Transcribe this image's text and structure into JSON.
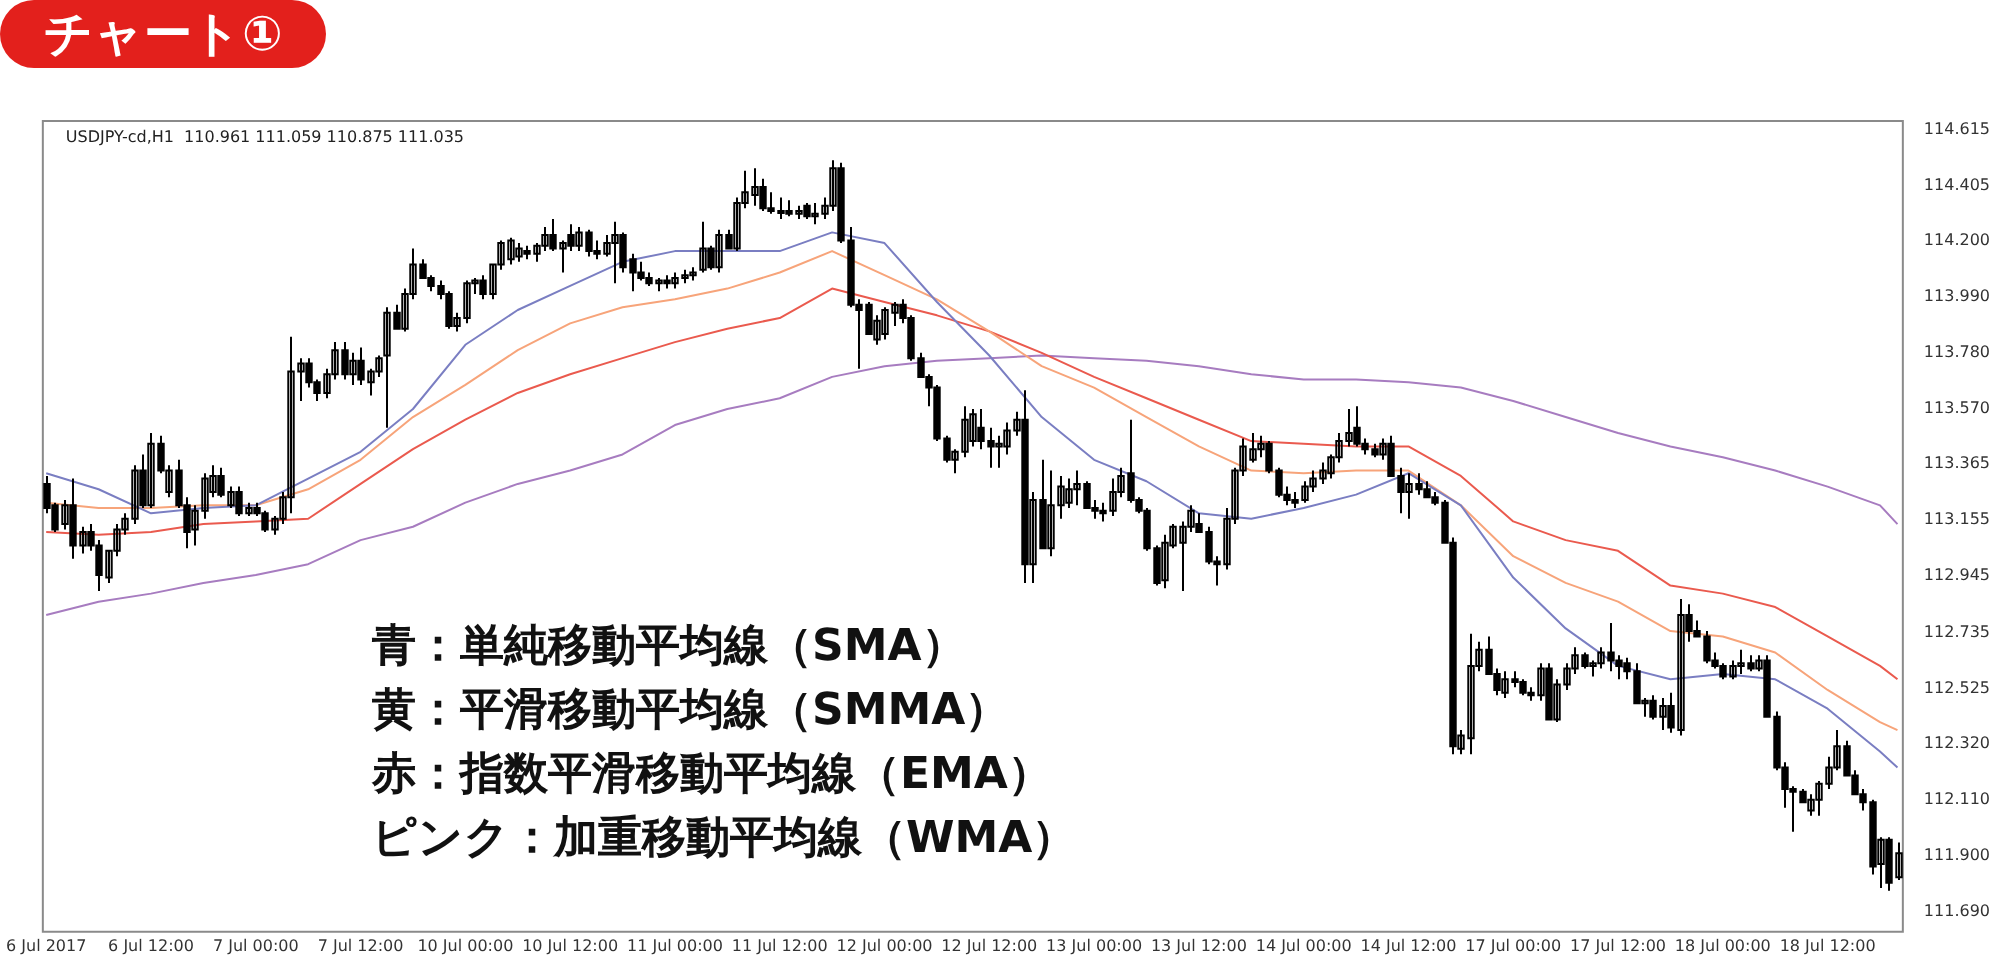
{
  "chart_data": {
    "type": "candlestick",
    "title": "チャート①",
    "annotations": [
      "USDJPY-cd,H1  110.961 111.059 110.875 111.035",
      "青：単純移動平均線（SMA）",
      "黄：平滑移動平均線（SMMA）",
      "赤：指数平滑移動平均線（EMA）",
      "ピンク：加重移動平均線（WMA）"
    ],
    "categories": [
      "6 Jul 2017",
      null,
      null,
      null,
      null,
      null,
      null,
      null,
      null,
      null,
      null,
      null,
      "6 Jul 12:00",
      null,
      null,
      null,
      null,
      null,
      null,
      null,
      null,
      null,
      null,
      null,
      "7 Jul 00:00",
      null,
      null,
      null,
      null,
      null,
      null,
      null,
      null,
      null,
      null,
      null,
      "7 Jul 12:00",
      null,
      null,
      null,
      null,
      null,
      null,
      null,
      null,
      null,
      null,
      null,
      "10 Jul 00:00",
      null,
      null,
      null,
      null,
      null,
      null,
      null,
      null,
      null,
      null,
      null,
      "10 Jul 12:00",
      null,
      null,
      null,
      null,
      null,
      null,
      null,
      null,
      null,
      null,
      null,
      "11 Jul 00:00",
      null,
      null,
      null,
      null,
      null,
      null,
      null,
      null,
      null,
      null,
      null,
      "11 Jul 12:00",
      null,
      null,
      null,
      null,
      null,
      null,
      null,
      null,
      null,
      null,
      null,
      "12 Jul 00:00",
      null,
      null,
      null,
      null,
      null,
      null,
      null,
      null,
      null,
      null,
      null,
      "12 Jul 12:00",
      null,
      null,
      null,
      null,
      null,
      null,
      null,
      null,
      null,
      null,
      null,
      "13 Jul 00:00",
      null,
      null,
      null,
      null,
      null,
      null,
      null,
      null,
      null,
      null,
      null,
      "13 Jul 12:00",
      null,
      null,
      null,
      null,
      null,
      null,
      null,
      null,
      null,
      null,
      null,
      "14 Jul 00:00",
      null,
      null,
      null,
      null,
      null,
      null,
      null,
      null,
      null,
      null,
      null,
      "14 Jul 12:00",
      null,
      null,
      null,
      null,
      null,
      null,
      null,
      null,
      null,
      null,
      null,
      "17 Jul 00:00",
      null,
      null,
      null,
      null,
      null,
      null,
      null,
      null,
      null,
      null,
      null,
      "17 Jul 12:00",
      null,
      null,
      null,
      null,
      null,
      null,
      null,
      null,
      null,
      null,
      null,
      "18 Jul 00:00",
      null,
      null,
      null,
      null,
      null,
      null,
      null,
      null,
      null,
      null,
      null,
      "18 Jul 12:00",
      null,
      null,
      null,
      null,
      null,
      null,
      null,
      null
    ],
    "color": "#000000",
    "ohlc": [
      [
        113.29,
        113.32,
        113.18,
        113.2
      ],
      [
        113.21,
        113.22,
        113.11,
        113.12
      ],
      [
        113.14,
        113.23,
        113.12,
        113.21
      ],
      [
        113.21,
        113.31,
        113.01,
        113.06
      ],
      [
        113.06,
        113.13,
        113.03,
        113.11
      ],
      [
        113.11,
        113.14,
        113.04,
        113.06
      ],
      [
        113.06,
        113.08,
        112.89,
        112.95
      ],
      [
        112.94,
        113.04,
        112.92,
        113.04
      ],
      [
        113.04,
        113.14,
        113.02,
        113.12
      ],
      [
        113.12,
        113.18,
        113.1,
        113.16
      ],
      [
        113.16,
        113.36,
        113.14,
        113.34
      ],
      [
        113.34,
        113.4,
        113.2,
        113.21
      ],
      [
        113.21,
        113.48,
        113.2,
        113.44
      ],
      [
        113.44,
        113.47,
        113.33,
        113.34
      ],
      [
        113.26,
        113.36,
        113.24,
        113.34
      ],
      [
        113.34,
        113.38,
        113.2,
        113.21
      ],
      [
        113.21,
        113.24,
        113.05,
        113.11
      ],
      [
        113.12,
        113.21,
        113.06,
        113.19
      ],
      [
        113.19,
        113.33,
        113.16,
        113.31
      ],
      [
        113.26,
        113.36,
        113.24,
        113.32
      ],
      [
        113.32,
        113.35,
        113.24,
        113.25
      ],
      [
        113.21,
        113.28,
        113.2,
        113.26
      ],
      [
        113.26,
        113.28,
        113.17,
        113.18
      ],
      [
        113.18,
        113.22,
        113.17,
        113.2
      ],
      [
        113.2,
        113.22,
        113.17,
        113.18
      ],
      [
        113.18,
        113.19,
        113.11,
        113.12
      ],
      [
        113.12,
        113.17,
        113.1,
        113.16
      ],
      [
        113.16,
        113.26,
        113.14,
        113.24
      ],
      [
        113.24,
        113.84,
        113.18,
        113.71
      ],
      [
        113.71,
        113.76,
        113.6,
        113.74
      ],
      [
        113.74,
        113.76,
        113.65,
        113.67
      ],
      [
        113.67,
        113.68,
        113.6,
        113.63
      ],
      [
        113.63,
        113.72,
        113.61,
        113.7
      ],
      [
        113.7,
        113.82,
        113.68,
        113.79
      ],
      [
        113.79,
        113.82,
        113.68,
        113.7
      ],
      [
        113.7,
        113.78,
        113.66,
        113.75
      ],
      [
        113.75,
        113.8,
        113.66,
        113.68
      ],
      [
        113.67,
        113.72,
        113.62,
        113.71
      ],
      [
        113.71,
        113.77,
        113.69,
        113.76
      ],
      [
        113.77,
        113.95,
        113.5,
        113.93
      ],
      [
        113.93,
        113.96,
        113.87,
        113.87
      ],
      [
        113.87,
        114.02,
        113.86,
        114.0
      ],
      [
        114.0,
        114.17,
        113.98,
        114.11
      ],
      [
        114.11,
        114.13,
        114.06,
        114.06
      ],
      [
        114.06,
        114.07,
        114.01,
        114.03
      ],
      [
        114.03,
        114.05,
        113.98,
        114.0
      ],
      [
        114.0,
        114.01,
        113.87,
        113.88
      ],
      [
        113.88,
        113.93,
        113.86,
        113.91
      ],
      [
        113.91,
        114.05,
        113.89,
        114.04
      ],
      [
        114.04,
        114.06,
        114.0,
        114.05
      ],
      [
        114.05,
        114.07,
        113.98,
        114.0
      ],
      [
        114.0,
        114.11,
        113.98,
        114.11
      ],
      [
        114.11,
        114.2,
        114.09,
        114.19
      ],
      [
        114.13,
        114.21,
        114.11,
        114.2
      ],
      [
        114.14,
        114.19,
        114.12,
        114.17
      ],
      [
        114.16,
        114.18,
        114.13,
        114.15
      ],
      [
        114.15,
        114.19,
        114.12,
        114.18
      ],
      [
        114.18,
        114.25,
        114.16,
        114.22
      ],
      [
        114.22,
        114.28,
        114.16,
        114.17
      ],
      [
        114.17,
        114.2,
        114.08,
        114.19
      ],
      [
        114.22,
        114.26,
        114.16,
        114.18
      ],
      [
        114.18,
        114.25,
        114.16,
        114.23
      ],
      [
        114.23,
        114.24,
        114.14,
        114.16
      ],
      [
        114.16,
        114.2,
        114.13,
        114.15
      ],
      [
        114.15,
        114.22,
        114.14,
        114.19
      ],
      [
        114.19,
        114.27,
        114.04,
        114.22
      ],
      [
        114.22,
        114.23,
        114.08,
        114.1
      ],
      [
        114.13,
        114.15,
        114.01,
        114.08
      ],
      [
        114.08,
        114.12,
        114.05,
        114.06
      ],
      [
        114.06,
        114.08,
        114.03,
        114.04
      ],
      [
        114.04,
        114.06,
        114.01,
        114.05
      ],
      [
        114.05,
        114.07,
        114.02,
        114.04
      ],
      [
        114.04,
        114.08,
        114.02,
        114.06
      ],
      [
        114.06,
        114.09,
        114.04,
        114.07
      ],
      [
        114.07,
        114.1,
        114.05,
        114.08
      ],
      [
        114.09,
        114.27,
        114.08,
        114.17
      ],
      [
        114.17,
        114.18,
        114.09,
        114.1
      ],
      [
        114.1,
        114.24,
        114.08,
        114.22
      ],
      [
        114.22,
        114.24,
        114.17,
        114.17
      ],
      [
        114.17,
        114.36,
        114.16,
        114.34
      ],
      [
        114.34,
        114.46,
        114.32,
        114.38
      ],
      [
        114.37,
        114.47,
        114.33,
        114.4
      ],
      [
        114.4,
        114.43,
        114.31,
        114.32
      ],
      [
        114.32,
        114.38,
        114.3,
        114.31
      ],
      [
        114.31,
        114.36,
        114.28,
        114.31
      ],
      [
        114.31,
        114.35,
        114.29,
        114.3
      ],
      [
        114.3,
        114.33,
        114.28,
        114.31
      ],
      [
        114.33,
        114.34,
        114.28,
        114.29
      ],
      [
        114.29,
        114.34,
        114.26,
        114.3
      ],
      [
        114.3,
        114.36,
        114.28,
        114.33
      ],
      [
        114.33,
        114.5,
        114.31,
        114.47
      ],
      [
        114.47,
        114.49,
        114.19,
        114.2
      ],
      [
        114.2,
        114.25,
        113.95,
        113.96
      ],
      [
        113.96,
        113.98,
        113.72,
        113.94
      ],
      [
        113.96,
        113.97,
        113.85,
        113.85
      ],
      [
        113.83,
        113.92,
        113.81,
        113.9
      ],
      [
        113.85,
        113.95,
        113.83,
        113.94
      ],
      [
        113.93,
        113.97,
        113.88,
        113.96
      ],
      [
        113.96,
        113.98,
        113.89,
        113.91
      ],
      [
        113.91,
        113.92,
        113.75,
        113.76
      ],
      [
        113.76,
        113.78,
        113.69,
        113.69
      ],
      [
        113.69,
        113.7,
        113.58,
        113.65
      ],
      [
        113.65,
        113.66,
        113.45,
        113.46
      ],
      [
        113.46,
        113.47,
        113.37,
        113.38
      ],
      [
        113.38,
        113.42,
        113.33,
        113.41
      ],
      [
        113.41,
        113.58,
        113.39,
        113.53
      ],
      [
        113.45,
        113.57,
        113.43,
        113.55
      ],
      [
        113.5,
        113.57,
        113.42,
        113.45
      ],
      [
        113.45,
        113.5,
        113.35,
        113.43
      ],
      [
        113.43,
        113.47,
        113.35,
        113.44
      ],
      [
        113.43,
        113.52,
        113.4,
        113.49
      ],
      [
        113.49,
        113.56,
        113.47,
        113.53
      ],
      [
        113.53,
        113.64,
        112.92,
        112.99
      ],
      [
        112.99,
        113.26,
        112.92,
        113.23
      ],
      [
        113.23,
        113.38,
        113.05,
        113.05
      ],
      [
        113.05,
        113.34,
        113.02,
        113.21
      ],
      [
        113.21,
        113.32,
        113.16,
        113.28
      ],
      [
        113.22,
        113.31,
        113.2,
        113.27
      ],
      [
        113.27,
        113.34,
        113.21,
        113.29
      ],
      [
        113.29,
        113.3,
        113.2,
        113.2
      ],
      [
        113.2,
        113.23,
        113.16,
        113.19
      ],
      [
        113.19,
        113.22,
        113.15,
        113.18
      ],
      [
        113.19,
        113.31,
        113.17,
        113.26
      ],
      [
        113.26,
        113.35,
        113.24,
        113.32
      ],
      [
        113.33,
        113.53,
        113.22,
        113.23
      ],
      [
        113.23,
        113.24,
        113.18,
        113.19
      ],
      [
        113.19,
        113.2,
        113.04,
        113.05
      ],
      [
        113.05,
        113.06,
        112.91,
        112.92
      ],
      [
        112.93,
        113.1,
        112.9,
        113.07
      ],
      [
        113.06,
        113.14,
        113.05,
        113.13
      ],
      [
        113.07,
        113.15,
        112.89,
        113.13
      ],
      [
        113.13,
        113.21,
        113.11,
        113.19
      ],
      [
        113.14,
        113.18,
        113.11,
        113.11
      ],
      [
        113.11,
        113.13,
        112.99,
        113.0
      ],
      [
        113.0,
        113.02,
        112.91,
        112.99
      ],
      [
        112.99,
        113.2,
        112.97,
        113.16
      ],
      [
        113.16,
        113.35,
        113.14,
        113.34
      ],
      [
        113.34,
        113.46,
        113.32,
        113.43
      ],
      [
        113.38,
        113.48,
        113.37,
        113.42
      ],
      [
        113.42,
        113.47,
        113.39,
        113.44
      ],
      [
        113.44,
        113.45,
        113.33,
        113.34
      ],
      [
        113.34,
        113.35,
        113.24,
        113.25
      ],
      [
        113.25,
        113.28,
        113.21,
        113.23
      ],
      [
        113.23,
        113.26,
        113.2,
        113.22
      ],
      [
        113.23,
        113.3,
        113.22,
        113.28
      ],
      [
        113.28,
        113.34,
        113.26,
        113.31
      ],
      [
        113.31,
        113.37,
        113.29,
        113.34
      ],
      [
        113.33,
        113.4,
        113.31,
        113.39
      ],
      [
        113.39,
        113.48,
        113.37,
        113.45
      ],
      [
        113.45,
        113.57,
        113.43,
        113.48
      ],
      [
        113.5,
        113.58,
        113.43,
        113.44
      ],
      [
        113.44,
        113.46,
        113.4,
        113.42
      ],
      [
        113.42,
        113.44,
        113.39,
        113.4
      ],
      [
        113.4,
        113.46,
        113.38,
        113.44
      ],
      [
        113.44,
        113.47,
        113.32,
        113.32
      ],
      [
        113.32,
        113.35,
        113.18,
        113.26
      ],
      [
        113.26,
        113.33,
        113.16,
        113.29
      ],
      [
        113.29,
        113.33,
        113.25,
        113.27
      ],
      [
        113.27,
        113.3,
        113.24,
        113.24
      ],
      [
        113.24,
        113.26,
        113.21,
        113.22
      ],
      [
        113.22,
        113.23,
        113.07,
        113.07
      ],
      [
        113.07,
        113.09,
        112.28,
        112.31
      ],
      [
        112.3,
        112.37,
        112.28,
        112.35
      ],
      [
        112.34,
        112.73,
        112.28,
        112.61
      ],
      [
        112.61,
        112.7,
        112.59,
        112.67
      ],
      [
        112.67,
        112.72,
        112.58,
        112.58
      ],
      [
        112.58,
        112.6,
        112.5,
        112.52
      ],
      [
        112.51,
        112.59,
        112.49,
        112.56
      ],
      [
        112.56,
        112.59,
        112.53,
        112.55
      ],
      [
        112.55,
        112.56,
        112.5,
        112.51
      ],
      [
        112.51,
        112.53,
        112.48,
        112.5
      ],
      [
        112.5,
        112.62,
        112.48,
        112.6
      ],
      [
        112.6,
        112.62,
        112.41,
        112.41
      ],
      [
        112.41,
        112.56,
        112.4,
        112.54
      ],
      [
        112.54,
        112.62,
        112.52,
        112.6
      ],
      [
        112.6,
        112.68,
        112.58,
        112.65
      ],
      [
        112.65,
        112.66,
        112.6,
        112.61
      ],
      [
        112.61,
        112.63,
        112.57,
        112.62
      ],
      [
        112.62,
        112.68,
        112.6,
        112.66
      ],
      [
        112.66,
        112.77,
        112.59,
        112.63
      ],
      [
        112.63,
        112.65,
        112.56,
        112.61
      ],
      [
        112.62,
        112.64,
        112.56,
        112.59
      ],
      [
        112.59,
        112.62,
        112.47,
        112.47
      ],
      [
        112.47,
        112.49,
        112.42,
        112.48
      ],
      [
        112.48,
        112.5,
        112.41,
        112.42
      ],
      [
        112.42,
        112.49,
        112.37,
        112.46
      ],
      [
        112.46,
        112.51,
        112.36,
        112.38
      ],
      [
        112.37,
        112.86,
        112.35,
        112.8
      ],
      [
        112.8,
        112.84,
        112.7,
        112.74
      ],
      [
        112.74,
        112.78,
        112.72,
        112.72
      ],
      [
        112.72,
        112.74,
        112.62,
        112.63
      ],
      [
        112.63,
        112.66,
        112.6,
        112.61
      ],
      [
        112.61,
        112.62,
        112.56,
        112.57
      ],
      [
        112.57,
        112.63,
        112.56,
        112.61
      ],
      [
        112.61,
        112.67,
        112.58,
        112.62
      ],
      [
        112.62,
        112.65,
        112.59,
        112.6
      ],
      [
        112.6,
        112.65,
        112.59,
        112.63
      ],
      [
        112.63,
        112.65,
        112.42,
        112.42
      ],
      [
        112.42,
        112.44,
        112.22,
        112.23
      ],
      [
        112.23,
        112.25,
        112.08,
        112.15
      ],
      [
        112.15,
        112.16,
        111.99,
        112.14
      ],
      [
        112.14,
        112.15,
        112.1,
        112.1
      ],
      [
        112.07,
        112.13,
        112.05,
        112.11
      ],
      [
        112.11,
        112.18,
        112.05,
        112.17
      ],
      [
        112.17,
        112.27,
        112.15,
        112.23
      ],
      [
        112.23,
        112.37,
        112.22,
        112.31
      ],
      [
        112.31,
        112.33,
        112.2,
        112.2
      ],
      [
        112.2,
        112.22,
        112.13,
        112.13
      ],
      [
        112.13,
        112.15,
        112.07,
        112.1
      ],
      [
        112.1,
        112.11,
        111.83,
        111.86
      ],
      [
        111.87,
        111.97,
        111.78,
        111.96
      ],
      [
        111.96,
        111.97,
        111.77,
        111.8
      ],
      [
        111.82,
        111.95,
        111.81,
        111.91
      ]
    ],
    "series": [
      {
        "type": "line",
        "color": "#7a7ec2",
        "values": [
          113.33,
          null,
          null,
          null,
          null,
          null,
          113.27,
          null,
          null,
          null,
          null,
          null,
          113.18,
          null,
          null,
          null,
          null,
          null,
          113.2,
          null,
          null,
          null,
          null,
          null,
          113.21,
          null,
          null,
          null,
          null,
          null,
          113.31,
          null,
          null,
          null,
          null,
          null,
          113.41,
          null,
          null,
          null,
          null,
          null,
          113.57,
          null,
          null,
          null,
          null,
          null,
          113.81,
          null,
          null,
          null,
          null,
          null,
          113.94,
          null,
          null,
          null,
          null,
          null,
          114.03,
          null,
          null,
          null,
          null,
          null,
          114.12,
          null,
          null,
          null,
          null,
          null,
          114.16,
          null,
          null,
          null,
          null,
          null,
          114.16,
          null,
          null,
          null,
          null,
          null,
          114.16,
          null,
          null,
          null,
          null,
          null,
          114.23,
          null,
          null,
          null,
          null,
          null,
          114.19,
          null,
          null,
          null,
          null,
          null,
          113.97,
          null,
          null,
          null,
          null,
          null,
          113.77,
          null,
          null,
          null,
          null,
          null,
          113.54,
          null,
          null,
          null,
          null,
          null,
          113.38,
          null,
          null,
          null,
          null,
          null,
          113.3,
          null,
          null,
          null,
          null,
          null,
          113.18,
          null,
          null,
          null,
          null,
          null,
          113.16,
          null,
          null,
          null,
          null,
          null,
          113.2,
          null,
          null,
          null,
          null,
          null,
          113.25,
          null,
          null,
          null,
          null,
          null,
          113.33,
          null,
          null,
          null,
          null,
          null,
          113.21,
          null,
          null,
          null,
          null,
          null,
          112.94,
          null,
          null,
          null,
          null,
          null,
          112.75,
          null,
          null,
          null,
          null,
          null,
          112.61,
          null,
          null,
          null,
          null,
          null,
          112.56,
          null,
          null,
          null,
          null,
          null,
          112.58,
          null,
          null,
          null,
          null,
          null,
          112.56,
          null,
          null,
          null,
          null,
          null,
          112.45,
          null,
          null,
          null,
          null,
          null,
          112.29,
          null,
          112.23
        ]
      },
      {
        "type": "line",
        "color": "#f7a47a",
        "values": [
          113.22,
          null,
          null,
          null,
          null,
          null,
          113.2,
          null,
          null,
          null,
          null,
          null,
          113.2,
          null,
          null,
          null,
          null,
          null,
          113.21,
          null,
          null,
          null,
          null,
          null,
          113.21,
          null,
          null,
          null,
          null,
          null,
          113.27,
          null,
          null,
          null,
          null,
          null,
          113.38,
          null,
          null,
          null,
          null,
          null,
          113.54,
          null,
          null,
          null,
          null,
          null,
          113.66,
          null,
          null,
          null,
          null,
          null,
          113.79,
          null,
          null,
          null,
          null,
          null,
          113.89,
          null,
          null,
          null,
          null,
          null,
          113.95,
          null,
          null,
          null,
          null,
          null,
          113.98,
          null,
          null,
          null,
          null,
          null,
          114.02,
          null,
          null,
          null,
          null,
          null,
          114.08,
          null,
          null,
          null,
          null,
          null,
          114.16,
          null,
          null,
          null,
          null,
          null,
          114.07,
          null,
          null,
          null,
          null,
          null,
          113.98,
          null,
          null,
          null,
          null,
          null,
          113.86,
          null,
          null,
          null,
          null,
          null,
          113.73,
          null,
          null,
          null,
          null,
          null,
          113.65,
          null,
          null,
          null,
          null,
          null,
          113.54,
          null,
          null,
          null,
          null,
          null,
          113.43,
          null,
          null,
          null,
          null,
          null,
          113.34,
          null,
          null,
          null,
          null,
          null,
          113.33,
          null,
          null,
          null,
          null,
          null,
          113.34,
          null,
          null,
          null,
          null,
          null,
          113.34,
          null,
          null,
          null,
          null,
          null,
          113.21,
          null,
          null,
          null,
          null,
          null,
          113.02,
          null,
          null,
          null,
          null,
          null,
          112.92,
          null,
          null,
          null,
          null,
          null,
          112.85,
          null,
          null,
          null,
          null,
          null,
          112.74,
          null,
          null,
          null,
          null,
          null,
          112.72,
          null,
          null,
          null,
          null,
          null,
          112.66,
          null,
          null,
          null,
          null,
          null,
          112.52,
          null,
          null,
          null,
          null,
          null,
          112.4,
          null,
          112.37
        ]
      },
      {
        "type": "line",
        "color": "#ea5a4e",
        "values": [
          113.11,
          null,
          null,
          null,
          null,
          null,
          113.1,
          null,
          null,
          null,
          null,
          null,
          113.11,
          null,
          null,
          null,
          null,
          null,
          113.14,
          null,
          null,
          null,
          null,
          null,
          113.15,
          null,
          null,
          null,
          null,
          null,
          113.16,
          null,
          null,
          null,
          null,
          null,
          113.29,
          null,
          null,
          null,
          null,
          null,
          113.42,
          null,
          null,
          null,
          null,
          null,
          113.53,
          null,
          null,
          null,
          null,
          null,
          113.63,
          null,
          null,
          null,
          null,
          null,
          113.7,
          null,
          null,
          null,
          null,
          null,
          113.76,
          null,
          null,
          null,
          null,
          null,
          113.82,
          null,
          null,
          null,
          null,
          null,
          113.87,
          null,
          null,
          null,
          null,
          null,
          113.91,
          null,
          null,
          null,
          null,
          null,
          114.02,
          null,
          null,
          null,
          null,
          null,
          113.97,
          null,
          null,
          null,
          null,
          null,
          113.92,
          null,
          null,
          null,
          null,
          null,
          113.86,
          null,
          null,
          null,
          null,
          null,
          113.78,
          null,
          null,
          null,
          null,
          null,
          113.69,
          null,
          null,
          null,
          null,
          null,
          113.61,
          null,
          null,
          null,
          null,
          null,
          113.53,
          null,
          null,
          null,
          null,
          null,
          113.45,
          null,
          null,
          null,
          null,
          null,
          113.44,
          null,
          null,
          null,
          null,
          null,
          113.43,
          null,
          null,
          null,
          null,
          null,
          113.43,
          null,
          null,
          null,
          null,
          null,
          113.32,
          null,
          null,
          null,
          null,
          null,
          113.15,
          null,
          null,
          null,
          null,
          null,
          113.08,
          null,
          null,
          null,
          null,
          null,
          113.04,
          null,
          null,
          null,
          null,
          null,
          112.91,
          null,
          null,
          null,
          null,
          null,
          112.88,
          null,
          null,
          null,
          null,
          null,
          112.83,
          null,
          null,
          null,
          null,
          null,
          112.72,
          null,
          null,
          null,
          null,
          null,
          112.61,
          null,
          112.56
        ]
      },
      {
        "type": "line",
        "color": "#a77cc0",
        "values": [
          112.8,
          null,
          null,
          null,
          null,
          null,
          112.85,
          null,
          null,
          null,
          null,
          null,
          112.88,
          null,
          null,
          null,
          null,
          null,
          112.92,
          null,
          null,
          null,
          null,
          null,
          112.95,
          null,
          null,
          null,
          null,
          null,
          112.99,
          null,
          null,
          null,
          null,
          null,
          113.08,
          null,
          null,
          null,
          null,
          null,
          113.13,
          null,
          null,
          null,
          null,
          null,
          113.22,
          null,
          null,
          null,
          null,
          null,
          113.29,
          null,
          null,
          null,
          null,
          null,
          113.34,
          null,
          null,
          null,
          null,
          null,
          113.4,
          null,
          null,
          null,
          null,
          null,
          113.51,
          null,
          null,
          null,
          null,
          null,
          113.57,
          null,
          null,
          null,
          null,
          null,
          113.61,
          null,
          null,
          null,
          null,
          null,
          113.69,
          null,
          null,
          null,
          null,
          null,
          113.73,
          null,
          null,
          null,
          null,
          null,
          113.75,
          null,
          null,
          null,
          null,
          null,
          113.76,
          null,
          null,
          null,
          null,
          null,
          113.77,
          null,
          null,
          null,
          null,
          null,
          113.76,
          null,
          null,
          null,
          null,
          null,
          113.75,
          null,
          null,
          null,
          null,
          null,
          113.73,
          null,
          null,
          null,
          null,
          null,
          113.7,
          null,
          null,
          null,
          null,
          null,
          113.68,
          null,
          null,
          null,
          null,
          null,
          113.68,
          null,
          null,
          null,
          null,
          null,
          113.67,
          null,
          null,
          null,
          null,
          null,
          113.65,
          null,
          null,
          null,
          null,
          null,
          113.6,
          null,
          null,
          null,
          null,
          null,
          113.54,
          null,
          null,
          null,
          null,
          null,
          113.48,
          null,
          null,
          null,
          null,
          null,
          113.43,
          null,
          null,
          null,
          null,
          null,
          113.39,
          null,
          null,
          null,
          null,
          null,
          113.34,
          null,
          null,
          null,
          null,
          null,
          113.28,
          null,
          null,
          null,
          null,
          null,
          113.21,
          null,
          113.14
        ]
      }
    ],
    "ylim": [
      111.62,
      114.65
    ],
    "yticks": [
      114.615,
      114.405,
      {
        "value": 114.2,
        "label": "114.200"
      },
      {
        "value": 113.99,
        "label": "113.990"
      },
      {
        "value": 113.78,
        "label": "113.780"
      },
      {
        "value": 113.57,
        "label": "113.570"
      },
      113.365,
      113.155,
      112.945,
      112.735,
      112.525,
      {
        "value": 112.32,
        "label": "112.320"
      },
      {
        "value": 112.11,
        "label": "112.110"
      },
      {
        "value": 111.9,
        "label": "111.900"
      },
      {
        "value": 111.69,
        "label": "111.690"
      }
    ]
  }
}
